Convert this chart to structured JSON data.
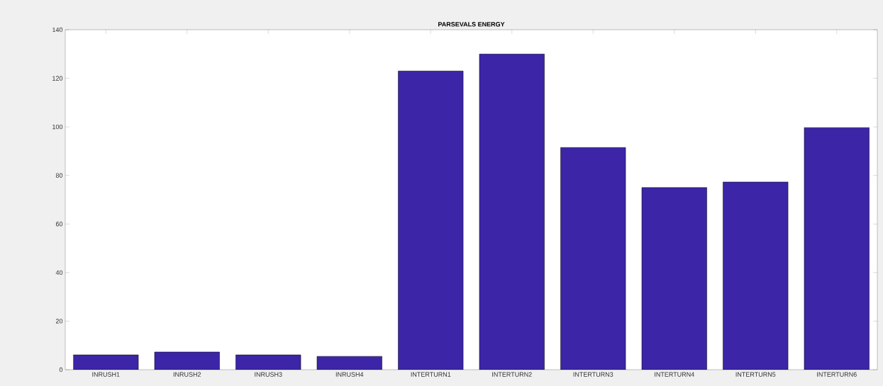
{
  "chart_data": {
    "type": "bar",
    "title": "PARSEVALS ENERGY",
    "categories": [
      "INRUSH1",
      "INRUSH2",
      "INRUSH3",
      "INRUSH4",
      "INTERTURN1",
      "INTERTURN2",
      "INTERTURN3",
      "INTERTURN4",
      "INTERTURN5",
      "INTERTURN6"
    ],
    "values": [
      6.1,
      7.3,
      6.1,
      5.5,
      123,
      130,
      91.5,
      75,
      77.3,
      99.7
    ],
    "color": "#3c25a7",
    "ylim": [
      0,
      140
    ],
    "yticks": [
      0,
      20,
      40,
      60,
      80,
      100,
      120,
      140
    ],
    "grid": false
  }
}
